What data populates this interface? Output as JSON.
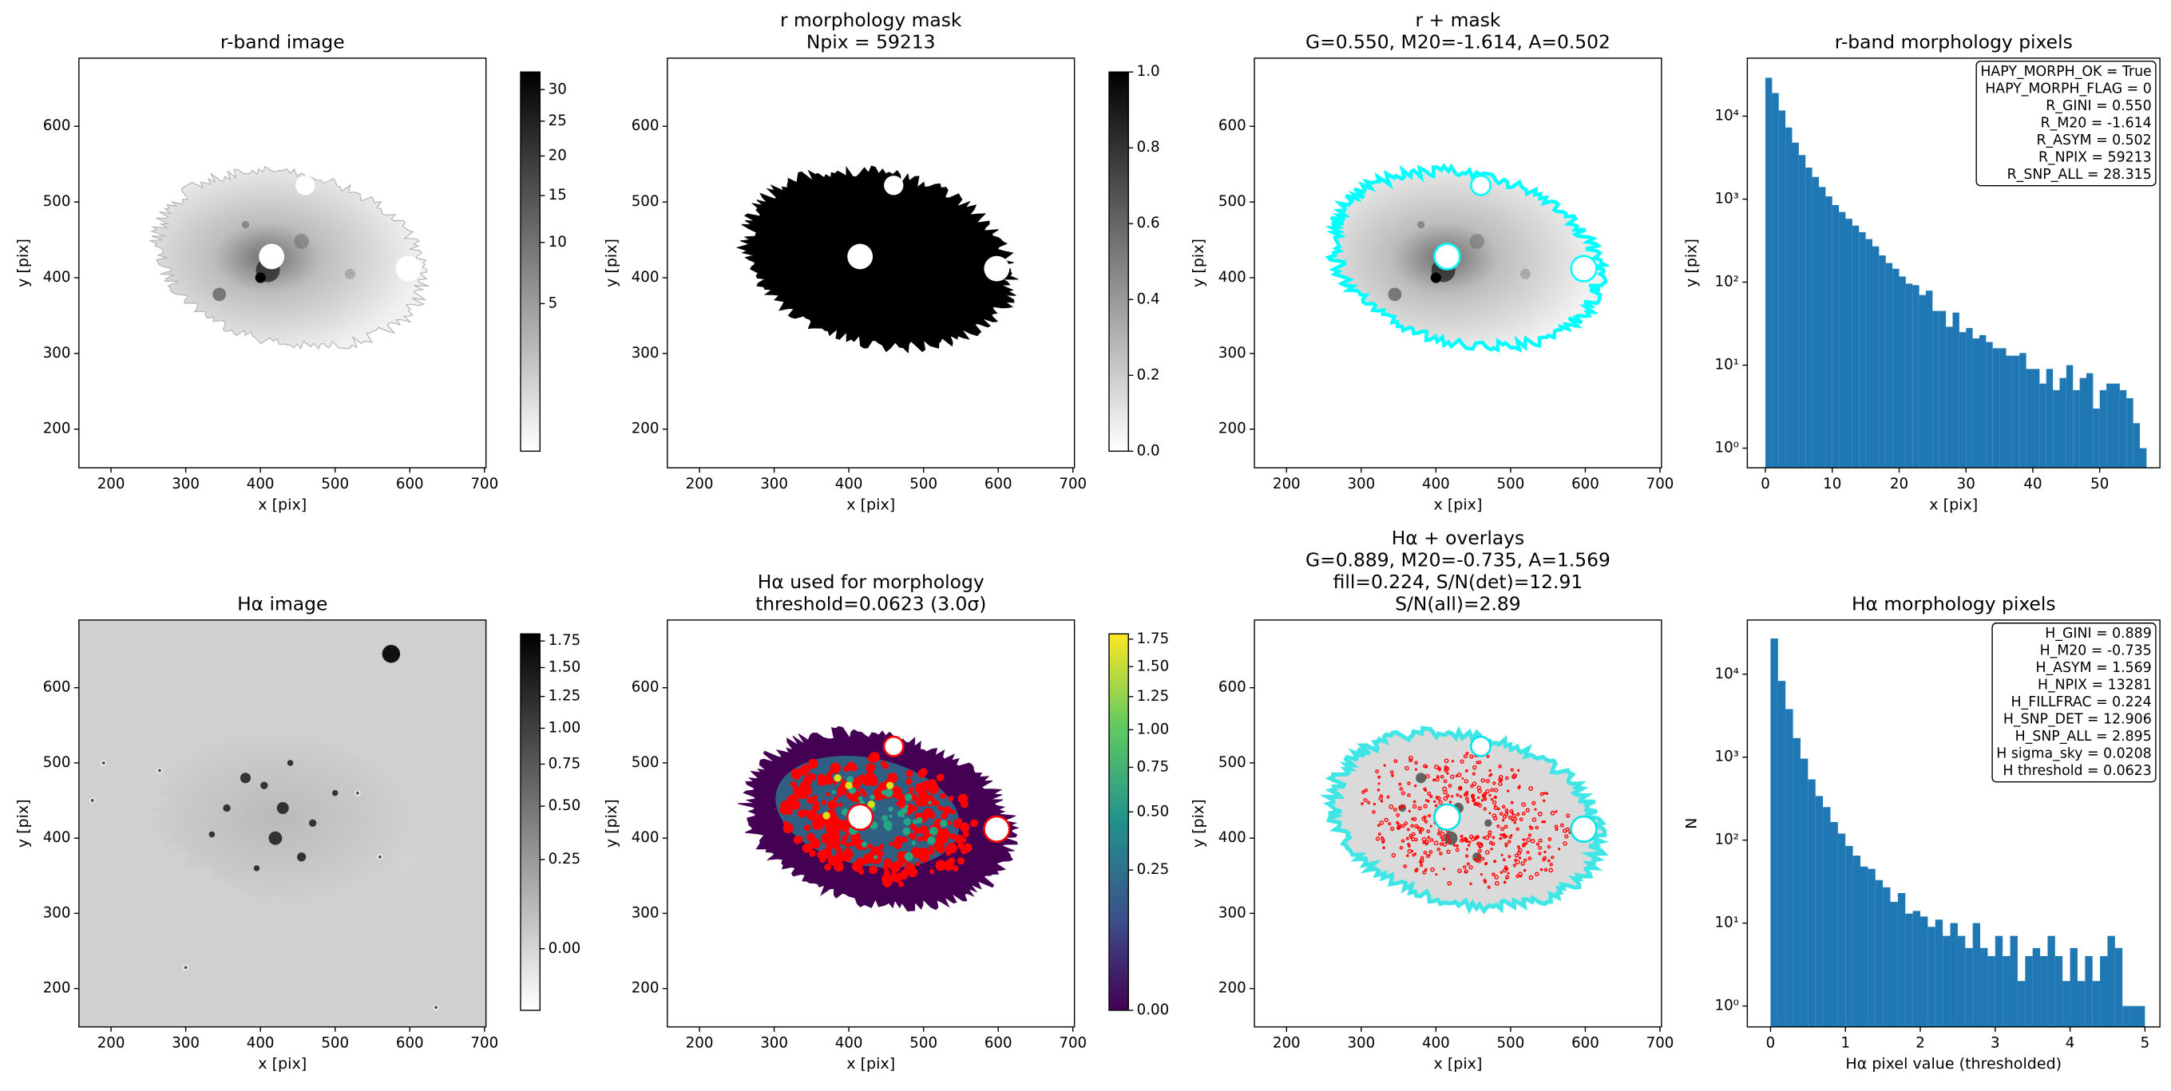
{
  "chart_data": [
    {
      "type": "image",
      "title": [
        "r-band image"
      ],
      "xlabel": "x [pix]",
      "ylabel": "y [pix]",
      "xlim": [
        157,
        702
      ],
      "ylim": [
        149,
        690
      ],
      "xticks": [
        200,
        300,
        400,
        500,
        600,
        700
      ],
      "yticks": [
        200,
        300,
        400,
        500,
        600
      ],
      "cmap": "gray_r",
      "colorbar": {
        "lim": [
          0,
          33
        ],
        "scale": "sqrt",
        "ticks": [
          5,
          10,
          15,
          20,
          25,
          30
        ]
      }
    },
    {
      "type": "image",
      "title": [
        "r morphology mask",
        "Npix = 59213"
      ],
      "xlabel": "x [pix]",
      "ylabel": "y [pix]",
      "xlim": [
        157,
        702
      ],
      "ylim": [
        149,
        690
      ],
      "xticks": [
        200,
        300,
        400,
        500,
        600,
        700
      ],
      "yticks": [
        200,
        300,
        400,
        500,
        600
      ],
      "cmap": "gray_r",
      "colorbar": {
        "lim": [
          0,
          1
        ],
        "scale": "linear",
        "ticks": [
          {
            "value": 0,
            "label": "0.0"
          },
          0.2,
          0.4,
          0.6,
          0.8,
          {
            "value": 1,
            "label": "1.0"
          }
        ]
      }
    },
    {
      "type": "image",
      "title": [
        "r + mask",
        "G=0.550, M20=-1.614, A=0.502"
      ],
      "xlabel": "x [pix]",
      "ylabel": "y [pix]",
      "xlim": [
        157,
        702
      ],
      "ylim": [
        149,
        690
      ],
      "xticks": [
        200,
        300,
        400,
        500,
        600,
        700
      ],
      "yticks": [
        200,
        300,
        400,
        500,
        600
      ],
      "cmap": "gray_r"
    },
    {
      "type": "histogram",
      "title": [
        "r-band morphology pixels"
      ],
      "xlabel": "x [pix]",
      "ylabel": "y [pix]",
      "bins": [
        0,
        1,
        2,
        3,
        4,
        5,
        6,
        7,
        8,
        9,
        10,
        11,
        12,
        13,
        14,
        15,
        16,
        17,
        18,
        19,
        20,
        21,
        22,
        23,
        24,
        25,
        26,
        27,
        28,
        29,
        30,
        31,
        32,
        33,
        34,
        35,
        36,
        37,
        38,
        39,
        40,
        41,
        42,
        43,
        44,
        45,
        46,
        47,
        48,
        49,
        50,
        51,
        52,
        53,
        54,
        55,
        56,
        57
      ],
      "values": [
        29000,
        19000,
        11700,
        7300,
        4800,
        3400,
        2400,
        1850,
        1400,
        1080,
        850,
        700,
        580,
        480,
        400,
        330,
        270,
        210,
        170,
        145,
        117,
        96,
        92,
        70,
        79,
        45,
        45,
        29,
        43,
        25,
        28,
        21,
        23,
        19,
        16,
        16,
        13,
        13,
        14,
        9,
        9,
        6,
        9,
        5,
        7,
        10,
        5,
        7,
        8,
        3,
        5,
        6,
        6,
        5,
        4,
        2,
        1
      ],
      "color": "#1f77b4",
      "xlim": [
        -2.7,
        59
      ],
      "xticks": [
        0,
        10,
        20,
        30,
        40,
        50
      ],
      "ylim": [
        0.58,
        50000
      ],
      "yscale": "log",
      "yticks": [
        {
          "value": 1,
          "label": "10⁰"
        },
        {
          "value": 10,
          "label": "10¹"
        },
        {
          "value": 100,
          "label": "10²"
        },
        {
          "value": 1000,
          "label": "10³"
        },
        {
          "value": 10000,
          "label": "10⁴"
        }
      ],
      "annotation": [
        "HAPY_MORPH_OK = True",
        "HAPY_MORPH_FLAG = 0",
        "R_GINI = 0.550",
        "R_M20 = -1.614",
        "R_ASYM = 0.502",
        "R_NPIX = 59213",
        "R_SNP_ALL = 28.315"
      ],
      "annotation_loc": "upper right"
    },
    {
      "type": "image",
      "title": [
        "Hα image"
      ],
      "xlabel": "x [pix]",
      "ylabel": "y [pix]",
      "xlim": [
        157,
        702
      ],
      "ylim": [
        149,
        690
      ],
      "xticks": [
        200,
        300,
        400,
        500,
        600,
        700
      ],
      "yticks": [
        200,
        300,
        400,
        500,
        600
      ],
      "cmap": "gray_r",
      "colorbar": {
        "lim": [
          -0.05,
          1.82
        ],
        "scale": "sqrt",
        "ticks": [
          {
            "value": 0,
            "label": "0.00"
          },
          0.25,
          {
            "value": 0.5,
            "label": "0.50"
          },
          0.75,
          {
            "value": 1,
            "label": "1.00"
          },
          1.25,
          {
            "value": 1.5,
            "label": "1.50"
          },
          1.75
        ]
      }
    },
    {
      "type": "image",
      "title": [
        "Hα used for morphology",
        "threshold=0.0623 (3.0σ)"
      ],
      "xlabel": "x [pix]",
      "ylabel": "y [pix]",
      "xlim": [
        157,
        702
      ],
      "ylim": [
        149,
        690
      ],
      "xticks": [
        200,
        300,
        400,
        500,
        600,
        700
      ],
      "yticks": [
        200,
        300,
        400,
        500,
        600
      ],
      "cmap": "viridis",
      "colorbar": {
        "lim": [
          0,
          1.8
        ],
        "scale": "sqrt",
        "ticks": [
          {
            "value": 0,
            "label": "0.00"
          },
          0.25,
          {
            "value": 0.5,
            "label": "0.50"
          },
          0.75,
          {
            "value": 1,
            "label": "1.00"
          },
          1.25,
          {
            "value": 1.5,
            "label": "1.50"
          },
          1.75
        ]
      }
    },
    {
      "type": "image",
      "title": [
        "Hα + overlays",
        "G=0.889, M20=-0.735, A=1.569",
        "fill=0.224, S/N(det)=12.91",
        "S/N(all)=2.89"
      ],
      "xlabel": "x [pix]",
      "ylabel": "y [pix]",
      "xlim": [
        157,
        702
      ],
      "ylim": [
        149,
        690
      ],
      "xticks": [
        200,
        300,
        400,
        500,
        600,
        700
      ],
      "yticks": [
        200,
        300,
        400,
        500,
        600
      ],
      "cmap": "gray_r"
    },
    {
      "type": "histogram",
      "title": [
        "Hα morphology pixels"
      ],
      "xlabel": "Hα pixel value (thresholded)",
      "ylabel": "N",
      "bins": [
        0,
        0.1,
        0.2,
        0.3,
        0.4,
        0.5,
        0.6,
        0.7,
        0.8,
        0.9,
        1,
        1.1,
        1.2,
        1.3,
        1.4,
        1.5,
        1.6,
        1.7,
        1.8,
        1.9,
        2,
        2.1,
        2.2,
        2.3,
        2.4,
        2.5,
        2.6,
        2.7,
        2.8,
        2.9,
        3,
        3.1,
        3.2,
        3.3,
        3.4,
        3.5,
        3.6,
        3.7,
        3.8,
        3.9,
        4,
        4.1,
        4.2,
        4.3,
        4.4,
        4.5,
        4.6,
        4.7,
        4.8,
        4.9,
        5
      ],
      "values": [
        27000,
        8300,
        3800,
        1700,
        960,
        540,
        340,
        250,
        165,
        120,
        85,
        65,
        48,
        45,
        33,
        27,
        18,
        23,
        13,
        14,
        12,
        9,
        11,
        7,
        10,
        7,
        5,
        10,
        5,
        4,
        7,
        4,
        7,
        2,
        4,
        5,
        4,
        7,
        4,
        2,
        5,
        2,
        4,
        2,
        4,
        7,
        5,
        1,
        1,
        1
      ],
      "color": "#1f77b4",
      "xlim": [
        -0.31,
        5.2
      ],
      "xticks": [
        0,
        1,
        2,
        3,
        4,
        5
      ],
      "ylim": [
        0.56,
        45000
      ],
      "yscale": "log",
      "yticks": [
        {
          "value": 1,
          "label": "10⁰"
        },
        {
          "value": 10,
          "label": "10¹"
        },
        {
          "value": 100,
          "label": "10²"
        },
        {
          "value": 1000,
          "label": "10³"
        },
        {
          "value": 10000,
          "label": "10⁴"
        }
      ],
      "annotation": [
        "H_GINI = 0.889",
        "H_M20 = -0.735",
        "H_ASYM = 1.569",
        "H_NPIX = 13281",
        "H_FILLFRAC = 0.224",
        "H_SNP_DET = 12.906",
        "H_SNP_ALL = 2.895",
        "H sigma_sky = 0.0208",
        "H threshold = 0.0623"
      ],
      "annotation_loc": "upper right"
    }
  ]
}
